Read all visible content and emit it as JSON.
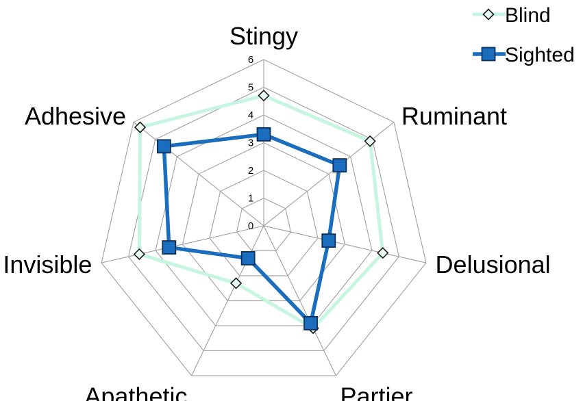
{
  "chart_data": {
    "type": "radar",
    "title": "",
    "categories": [
      "Stingy",
      "Ruminant",
      "Delusional",
      "Partier",
      "Apathetic",
      "Invisible",
      "Adhesive"
    ],
    "rlim": [
      0,
      6
    ],
    "ticks": [
      "0",
      "1",
      "2",
      "3",
      "4",
      "5",
      "6"
    ],
    "grid": true,
    "legend": "top-right",
    "series": [
      {
        "name": "Blind",
        "values": [
          4.7,
          4.9,
          4.4,
          4.1,
          2.3,
          4.6,
          5.7
        ],
        "color": "#c6f5e0",
        "marker": "diamond",
        "marker_fill": "#e8fbf1",
        "marker_stroke": "#1a1a1a"
      },
      {
        "name": "Sighted",
        "values": [
          3.3,
          3.5,
          2.4,
          3.9,
          1.3,
          3.5,
          4.6
        ],
        "color": "#1a6ebd",
        "marker": "square",
        "marker_fill": "#1a6ebd",
        "marker_stroke": "#0d2f5c"
      }
    ]
  }
}
